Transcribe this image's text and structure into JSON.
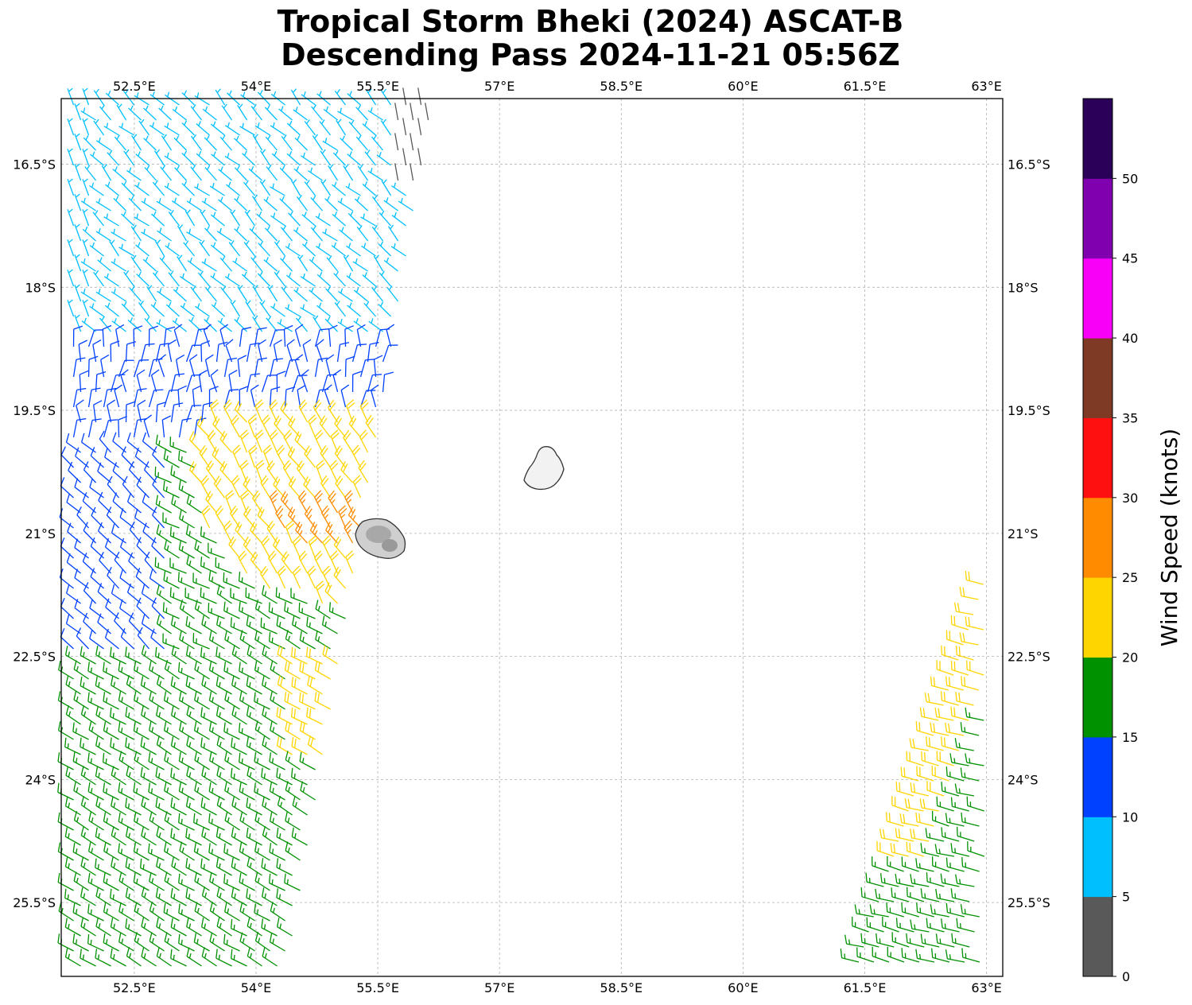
{
  "title": {
    "line1": "Tropical Storm Bheki (2024) ASCAT-B",
    "line2": "Descending Pass 2024-11-21 05:56Z"
  },
  "map": {
    "lon_range": [
      51.6,
      63.2
    ],
    "lat_range": [
      -26.4,
      -15.7
    ],
    "lon_ticks": [
      "52.5°E",
      "54°E",
      "55.5°E",
      "57°E",
      "58.5°E",
      "60°E",
      "61.5°E",
      "63°E"
    ],
    "lat_ticks": [
      "16.5°S",
      "18°S",
      "19.5°S",
      "21°S",
      "22.5°S",
      "24°S",
      "25.5°S"
    ],
    "gridlines": true,
    "islands": [
      "mauritius-island",
      "reunion-island"
    ]
  },
  "colorbar": {
    "label": "Wind Speed (knots)",
    "ticks": [
      "0",
      "5",
      "10",
      "15",
      "20",
      "25",
      "30",
      "35",
      "40",
      "45",
      "50"
    ],
    "colors": [
      "#595959",
      "#00bfff",
      "#0040ff",
      "#009100",
      "#ffd500",
      "#ff8c00",
      "#ff1010",
      "#7f3a25",
      "#f800f8",
      "#8000b0",
      "#2a0058"
    ]
  }
}
